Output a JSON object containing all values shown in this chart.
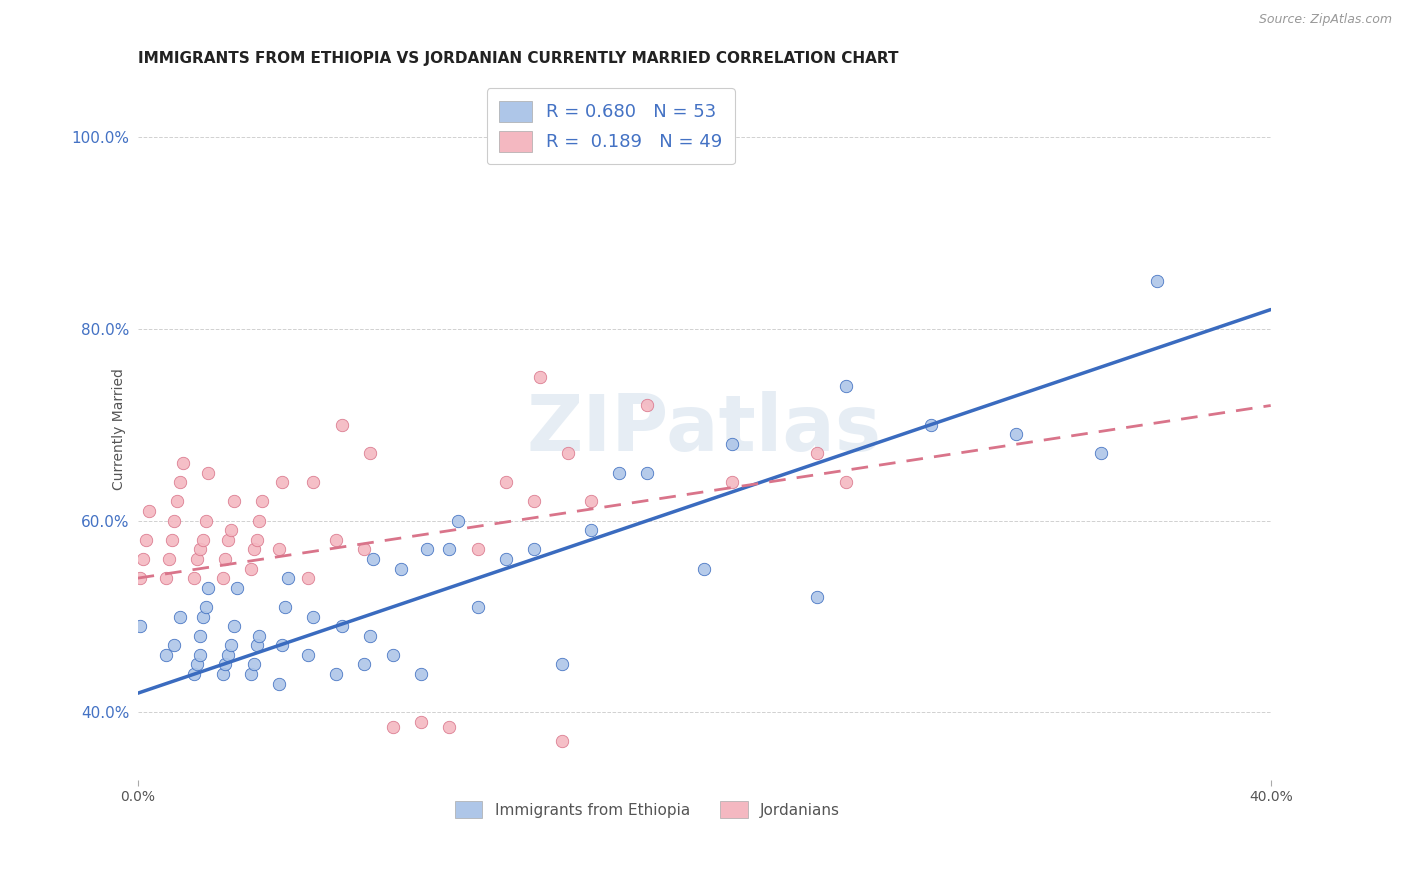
{
  "title": "IMMIGRANTS FROM ETHIOPIA VS JORDANIAN CURRENTLY MARRIED CORRELATION CHART",
  "source": "Source: ZipAtlas.com",
  "ylabel": "Currently Married",
  "xlim": [
    0.0,
    0.4
  ],
  "ylim": [
    0.33,
    1.06
  ],
  "watermark": "ZIPatlas",
  "legend_entries": [
    {
      "label": "R = 0.680   N = 53",
      "color": "#aec6e8"
    },
    {
      "label": "R =  0.189   N = 49",
      "color": "#f4b8c1"
    }
  ],
  "legend_labels_bottom": [
    "Immigrants from Ethiopia",
    "Jordanians"
  ],
  "blue_scatter_x": [
    0.001,
    0.01,
    0.013,
    0.015,
    0.02,
    0.021,
    0.022,
    0.022,
    0.023,
    0.024,
    0.025,
    0.03,
    0.031,
    0.032,
    0.033,
    0.034,
    0.035,
    0.04,
    0.041,
    0.042,
    0.043,
    0.05,
    0.051,
    0.052,
    0.053,
    0.06,
    0.062,
    0.07,
    0.072,
    0.08,
    0.082,
    0.083,
    0.09,
    0.093,
    0.1,
    0.102,
    0.11,
    0.113,
    0.12,
    0.13,
    0.14,
    0.15,
    0.16,
    0.17,
    0.18,
    0.2,
    0.21,
    0.24,
    0.25,
    0.28,
    0.31,
    0.34,
    0.36
  ],
  "blue_scatter_y": [
    0.49,
    0.46,
    0.47,
    0.5,
    0.44,
    0.45,
    0.46,
    0.48,
    0.5,
    0.51,
    0.53,
    0.44,
    0.45,
    0.46,
    0.47,
    0.49,
    0.53,
    0.44,
    0.45,
    0.47,
    0.48,
    0.43,
    0.47,
    0.51,
    0.54,
    0.46,
    0.5,
    0.44,
    0.49,
    0.45,
    0.48,
    0.56,
    0.46,
    0.55,
    0.44,
    0.57,
    0.57,
    0.6,
    0.51,
    0.56,
    0.57,
    0.45,
    0.59,
    0.65,
    0.65,
    0.55,
    0.68,
    0.52,
    0.74,
    0.7,
    0.69,
    0.67,
    0.85
  ],
  "pink_scatter_x": [
    0.001,
    0.002,
    0.003,
    0.004,
    0.01,
    0.011,
    0.012,
    0.013,
    0.014,
    0.015,
    0.016,
    0.02,
    0.021,
    0.022,
    0.023,
    0.024,
    0.025,
    0.03,
    0.031,
    0.032,
    0.033,
    0.034,
    0.04,
    0.041,
    0.042,
    0.043,
    0.044,
    0.05,
    0.051,
    0.06,
    0.062,
    0.07,
    0.072,
    0.08,
    0.082,
    0.09,
    0.1,
    0.11,
    0.12,
    0.13,
    0.14,
    0.142,
    0.15,
    0.152,
    0.16,
    0.18,
    0.21,
    0.24,
    0.25
  ],
  "pink_scatter_y": [
    0.54,
    0.56,
    0.58,
    0.61,
    0.54,
    0.56,
    0.58,
    0.6,
    0.62,
    0.64,
    0.66,
    0.54,
    0.56,
    0.57,
    0.58,
    0.6,
    0.65,
    0.54,
    0.56,
    0.58,
    0.59,
    0.62,
    0.55,
    0.57,
    0.58,
    0.6,
    0.62,
    0.57,
    0.64,
    0.54,
    0.64,
    0.58,
    0.7,
    0.57,
    0.67,
    0.385,
    0.39,
    0.385,
    0.57,
    0.64,
    0.62,
    0.75,
    0.37,
    0.67,
    0.62,
    0.72,
    0.64,
    0.67,
    0.64
  ],
  "blue_line_x": [
    0.0,
    0.4
  ],
  "blue_line_y": [
    0.42,
    0.82
  ],
  "pink_line_x": [
    0.0,
    0.4
  ],
  "pink_line_y": [
    0.54,
    0.72
  ],
  "blue_color": "#3a6bbf",
  "pink_color": "#d9748a",
  "blue_scatter_color": "#aec6e8",
  "pink_scatter_color": "#f4b8c1",
  "yticks": [
    0.4,
    0.6,
    0.8,
    1.0
  ],
  "ytick_labels": [
    "40.0%",
    "60.0%",
    "80.0%",
    "100.0%"
  ],
  "xticks": [
    0.0,
    0.4
  ],
  "xtick_labels": [
    "0.0%",
    "40.0%"
  ],
  "title_fontsize": 11,
  "axis_label_fontsize": 10,
  "source_fontsize": 9,
  "watermark_color": "#c8d8e8",
  "watermark_alpha": 0.45
}
